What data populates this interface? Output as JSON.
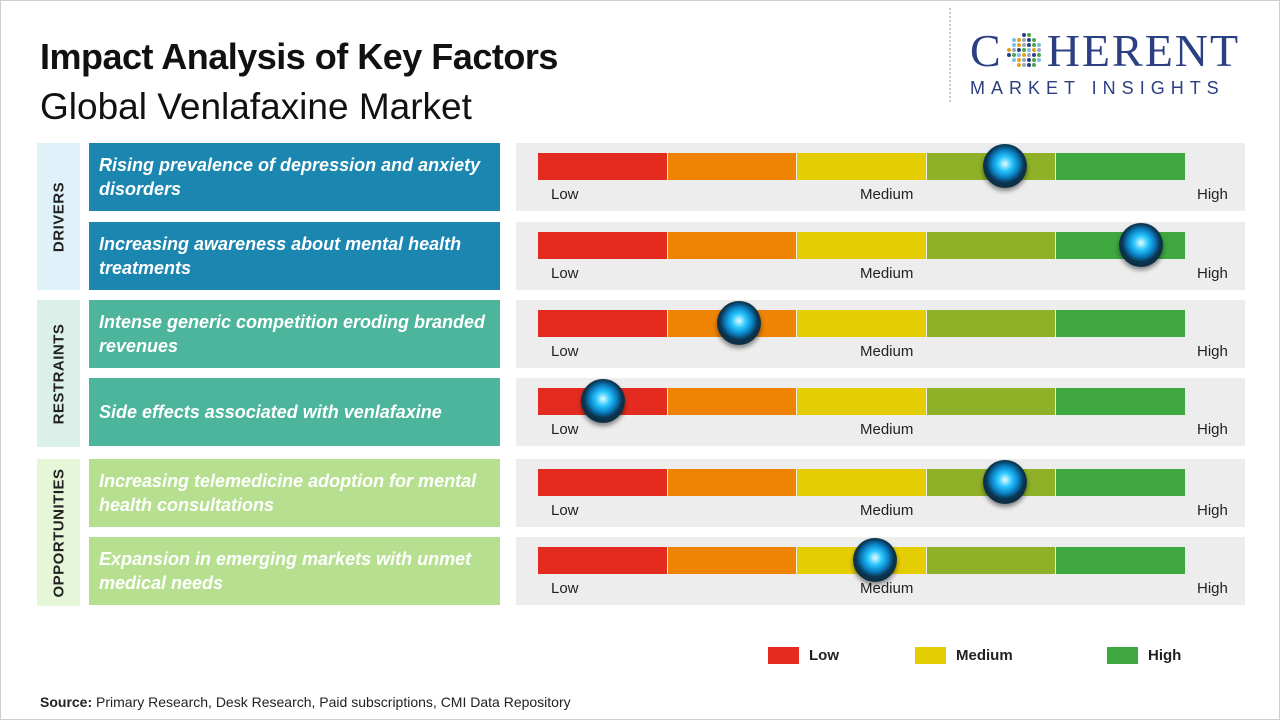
{
  "header": {
    "title": "Impact Analysis of Key Factors",
    "subtitle": "Global Venlafaxine Market"
  },
  "logo": {
    "main_left": "C",
    "main_right": "HERENT",
    "sub": "MARKET INSIGHTS"
  },
  "categories": [
    {
      "label": "DRIVERS",
      "color": "#dff1f9"
    },
    {
      "label": "RESTRAINTS",
      "color": "#dcf0ea"
    },
    {
      "label": "OPPORTUNITIES",
      "color": "#e6f6d9"
    }
  ],
  "scale": {
    "low": "Low",
    "medium": "Medium",
    "high": "High"
  },
  "segment_colors": [
    "#e32c1f",
    "#ee8304",
    "#e5cd04",
    "#8fb128",
    "#3fa73f"
  ],
  "chart_data": {
    "type": "table",
    "title": "Impact Analysis of Key Factors",
    "subtitle": "Global Venlafaxine Market",
    "scale_range": [
      0,
      1
    ],
    "scale_labels": [
      "Low",
      "Medium",
      "High"
    ],
    "rows": [
      {
        "category": "DRIVERS",
        "factor": "Rising prevalence of depression and anxiety disorders",
        "impact": 0.72,
        "color": "#1b86b0"
      },
      {
        "category": "DRIVERS",
        "factor": "Increasing awareness about mental health treatments",
        "impact": 0.93,
        "color": "#1b86b0"
      },
      {
        "category": "RESTRAINTS",
        "factor": "Intense generic competition eroding branded revenues",
        "impact": 0.31,
        "color": "#4db59b"
      },
      {
        "category": "RESTRAINTS",
        "factor": "Side effects associated with venlafaxine",
        "impact": 0.1,
        "color": "#4db59b"
      },
      {
        "category": "OPPORTUNITIES",
        "factor": "Increasing telemedicine adoption for mental health consultations",
        "impact": 0.72,
        "color": "#b6e08f"
      },
      {
        "category": "OPPORTUNITIES",
        "factor": "Expansion in emerging markets with unmet medical needs",
        "impact": 0.52,
        "color": "#b6e08f"
      }
    ],
    "legend": [
      {
        "label": "Low",
        "color": "#e32c1f"
      },
      {
        "label": "Medium",
        "color": "#e5cd04"
      },
      {
        "label": "High",
        "color": "#3fa73f"
      }
    ]
  },
  "source": {
    "label": "Source:",
    "text": " Primary Research, Desk Research, Paid subscriptions, CMI Data Repository"
  }
}
